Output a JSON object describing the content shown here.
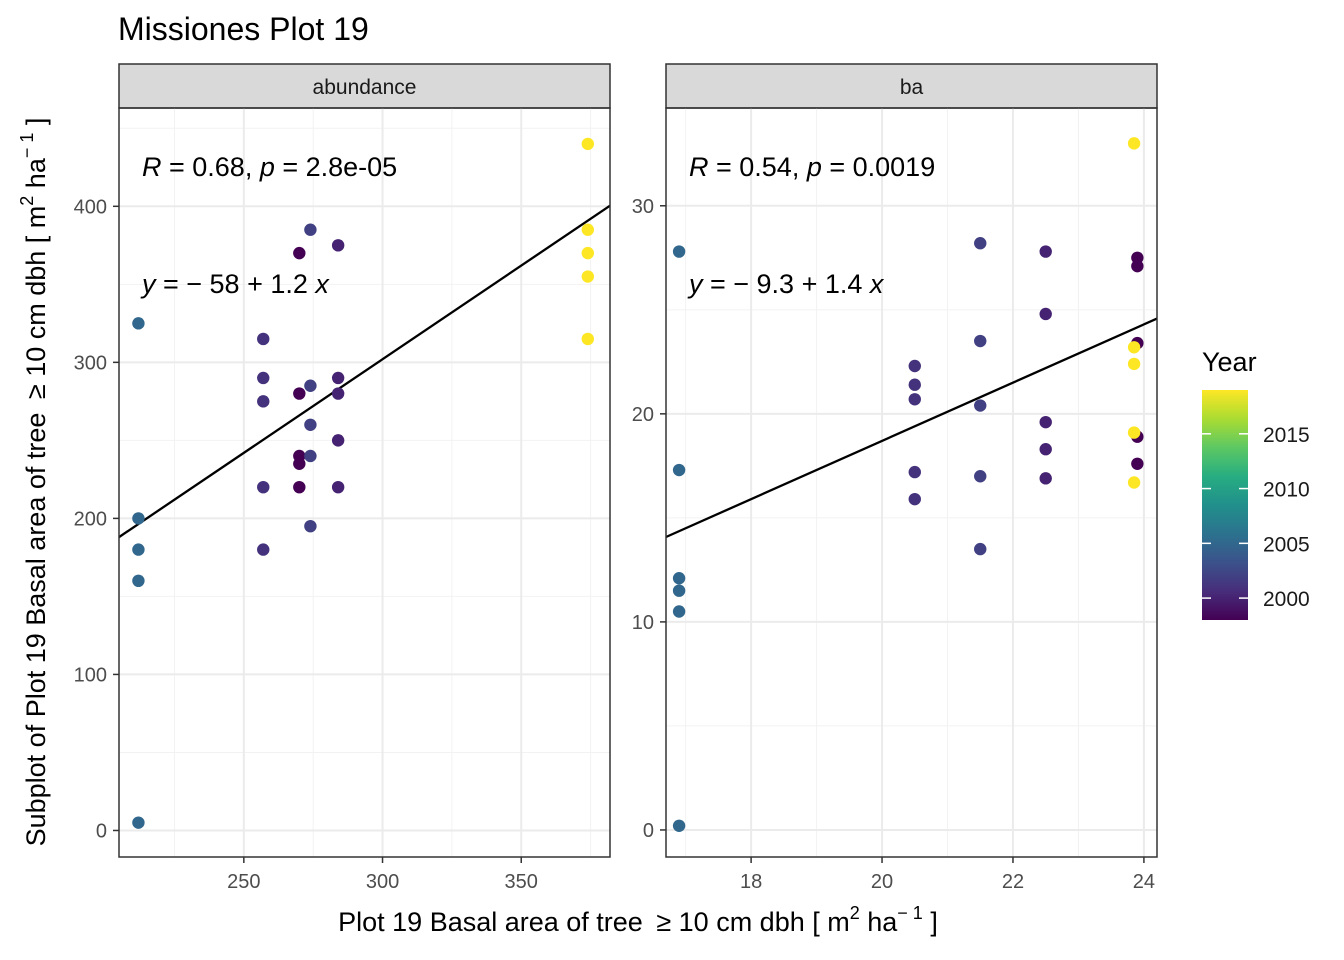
{
  "title": "Missiones Plot 19",
  "x_axis_label": {
    "prefix": "Plot 19 Basal area of tree ",
    "symbol": "≥",
    "middle": " 10 cm dbh [ m",
    "sup1": "2",
    "middle2": " ha",
    "sup2": "− 1",
    "suffix": " ]"
  },
  "y_axis_label": {
    "prefix": "Subplot of Plot 19 Basal area of tree ",
    "symbol": "≥",
    "middle": " 10 cm dbh [ m",
    "sup1": "2",
    "middle2": " ha",
    "sup2": "− 1",
    "suffix": " ]"
  },
  "legend": {
    "title": "Year",
    "range": [
      1998,
      2019
    ],
    "ticks": [
      "2000",
      "2005",
      "2010",
      "2015"
    ],
    "tick_values": [
      2000,
      2005,
      2010,
      2015
    ],
    "colors": [
      "#440154",
      "#472D7B",
      "#3B528B",
      "#2C728E",
      "#21908C",
      "#27AD81",
      "#5DC863",
      "#AADC32",
      "#FDE725"
    ]
  },
  "chart_data": [
    {
      "type": "scatter",
      "panel": "abundance",
      "xlim": [
        205,
        382
      ],
      "ylim": [
        -17,
        463
      ],
      "x_ticks": [
        250,
        300,
        350
      ],
      "y_ticks": [
        0,
        100,
        200,
        300,
        400
      ],
      "annotation": {
        "r_label": "R",
        "r_value": " = 0.68, ",
        "p_label": "p",
        "p_value": " = 2.8e-05",
        "eq_y": "y",
        "eq_body": " = − 58 + 1.2 ",
        "eq_x": "x"
      },
      "regression": {
        "intercept": -58,
        "slope": 1.2
      },
      "points": [
        {
          "x": 212,
          "y": 5,
          "year": 2005
        },
        {
          "x": 212,
          "y": 160,
          "year": 2005
        },
        {
          "x": 212,
          "y": 180,
          "year": 2005
        },
        {
          "x": 212,
          "y": 200,
          "year": 2005
        },
        {
          "x": 212,
          "y": 325,
          "year": 2005
        },
        {
          "x": 257,
          "y": 180,
          "year": 2001
        },
        {
          "x": 257,
          "y": 220,
          "year": 2001
        },
        {
          "x": 257,
          "y": 275,
          "year": 2001
        },
        {
          "x": 257,
          "y": 290,
          "year": 2001
        },
        {
          "x": 257,
          "y": 315,
          "year": 2001
        },
        {
          "x": 270,
          "y": 220,
          "year": 1998
        },
        {
          "x": 270,
          "y": 235,
          "year": 1998
        },
        {
          "x": 270,
          "y": 240,
          "year": 1998
        },
        {
          "x": 270,
          "y": 280,
          "year": 1998
        },
        {
          "x": 270,
          "y": 370,
          "year": 1998
        },
        {
          "x": 274,
          "y": 195,
          "year": 2002
        },
        {
          "x": 274,
          "y": 240,
          "year": 2002
        },
        {
          "x": 274,
          "y": 260,
          "year": 2002
        },
        {
          "x": 274,
          "y": 285,
          "year": 2002
        },
        {
          "x": 274,
          "y": 385,
          "year": 2002
        },
        {
          "x": 284,
          "y": 220,
          "year": 2000
        },
        {
          "x": 284,
          "y": 250,
          "year": 2000
        },
        {
          "x": 284,
          "y": 280,
          "year": 2000
        },
        {
          "x": 284,
          "y": 290,
          "year": 2000
        },
        {
          "x": 284,
          "y": 375,
          "year": 2000
        },
        {
          "x": 374,
          "y": 315,
          "year": 2019
        },
        {
          "x": 374,
          "y": 355,
          "year": 2019
        },
        {
          "x": 374,
          "y": 370,
          "year": 2019
        },
        {
          "x": 374,
          "y": 385,
          "year": 2019
        },
        {
          "x": 374,
          "y": 440,
          "year": 2019
        }
      ]
    },
    {
      "type": "scatter",
      "panel": "ba",
      "xlim": [
        16.7,
        24.2
      ],
      "ylim": [
        -1.3,
        34.7
      ],
      "x_ticks": [
        18,
        20,
        22,
        24
      ],
      "y_ticks": [
        0,
        10,
        20,
        30
      ],
      "annotation": {
        "r_label": "R",
        "r_value": " = 0.54, ",
        "p_label": "p",
        "p_value": " = 0.0019",
        "eq_y": "y",
        "eq_body": " = − 9.3 + 1.4 ",
        "eq_x": "x"
      },
      "regression": {
        "intercept": -9.3,
        "slope": 1.4
      },
      "points": [
        {
          "x": 16.9,
          "y": 0.2,
          "year": 2005
        },
        {
          "x": 16.9,
          "y": 10.5,
          "year": 2005
        },
        {
          "x": 16.9,
          "y": 11.5,
          "year": 2005
        },
        {
          "x": 16.9,
          "y": 12.1,
          "year": 2005
        },
        {
          "x": 16.9,
          "y": 17.3,
          "year": 2005
        },
        {
          "x": 16.9,
          "y": 27.8,
          "year": 2005
        },
        {
          "x": 20.5,
          "y": 15.9,
          "year": 2001
        },
        {
          "x": 20.5,
          "y": 17.2,
          "year": 2001
        },
        {
          "x": 20.5,
          "y": 20.7,
          "year": 2001
        },
        {
          "x": 20.5,
          "y": 21.4,
          "year": 2001
        },
        {
          "x": 20.5,
          "y": 22.3,
          "year": 2001
        },
        {
          "x": 21.5,
          "y": 13.5,
          "year": 2002
        },
        {
          "x": 21.5,
          "y": 17.0,
          "year": 2002
        },
        {
          "x": 21.5,
          "y": 20.4,
          "year": 2002
        },
        {
          "x": 21.5,
          "y": 23.5,
          "year": 2002
        },
        {
          "x": 21.5,
          "y": 28.2,
          "year": 2002
        },
        {
          "x": 22.5,
          "y": 16.9,
          "year": 2000
        },
        {
          "x": 22.5,
          "y": 18.3,
          "year": 2000
        },
        {
          "x": 22.5,
          "y": 19.6,
          "year": 2000
        },
        {
          "x": 22.5,
          "y": 24.8,
          "year": 2000
        },
        {
          "x": 22.5,
          "y": 27.8,
          "year": 2000
        },
        {
          "x": 23.9,
          "y": 17.6,
          "year": 1998
        },
        {
          "x": 23.9,
          "y": 18.9,
          "year": 1998
        },
        {
          "x": 23.9,
          "y": 23.4,
          "year": 1998
        },
        {
          "x": 23.9,
          "y": 27.1,
          "year": 1998
        },
        {
          "x": 23.9,
          "y": 27.5,
          "year": 1998
        },
        {
          "x": 23.85,
          "y": 16.7,
          "year": 2019
        },
        {
          "x": 23.85,
          "y": 19.1,
          "year": 2019
        },
        {
          "x": 23.85,
          "y": 22.4,
          "year": 2019
        },
        {
          "x": 23.85,
          "y": 23.2,
          "year": 2019
        },
        {
          "x": 23.85,
          "y": 33.0,
          "year": 2019
        }
      ]
    }
  ]
}
